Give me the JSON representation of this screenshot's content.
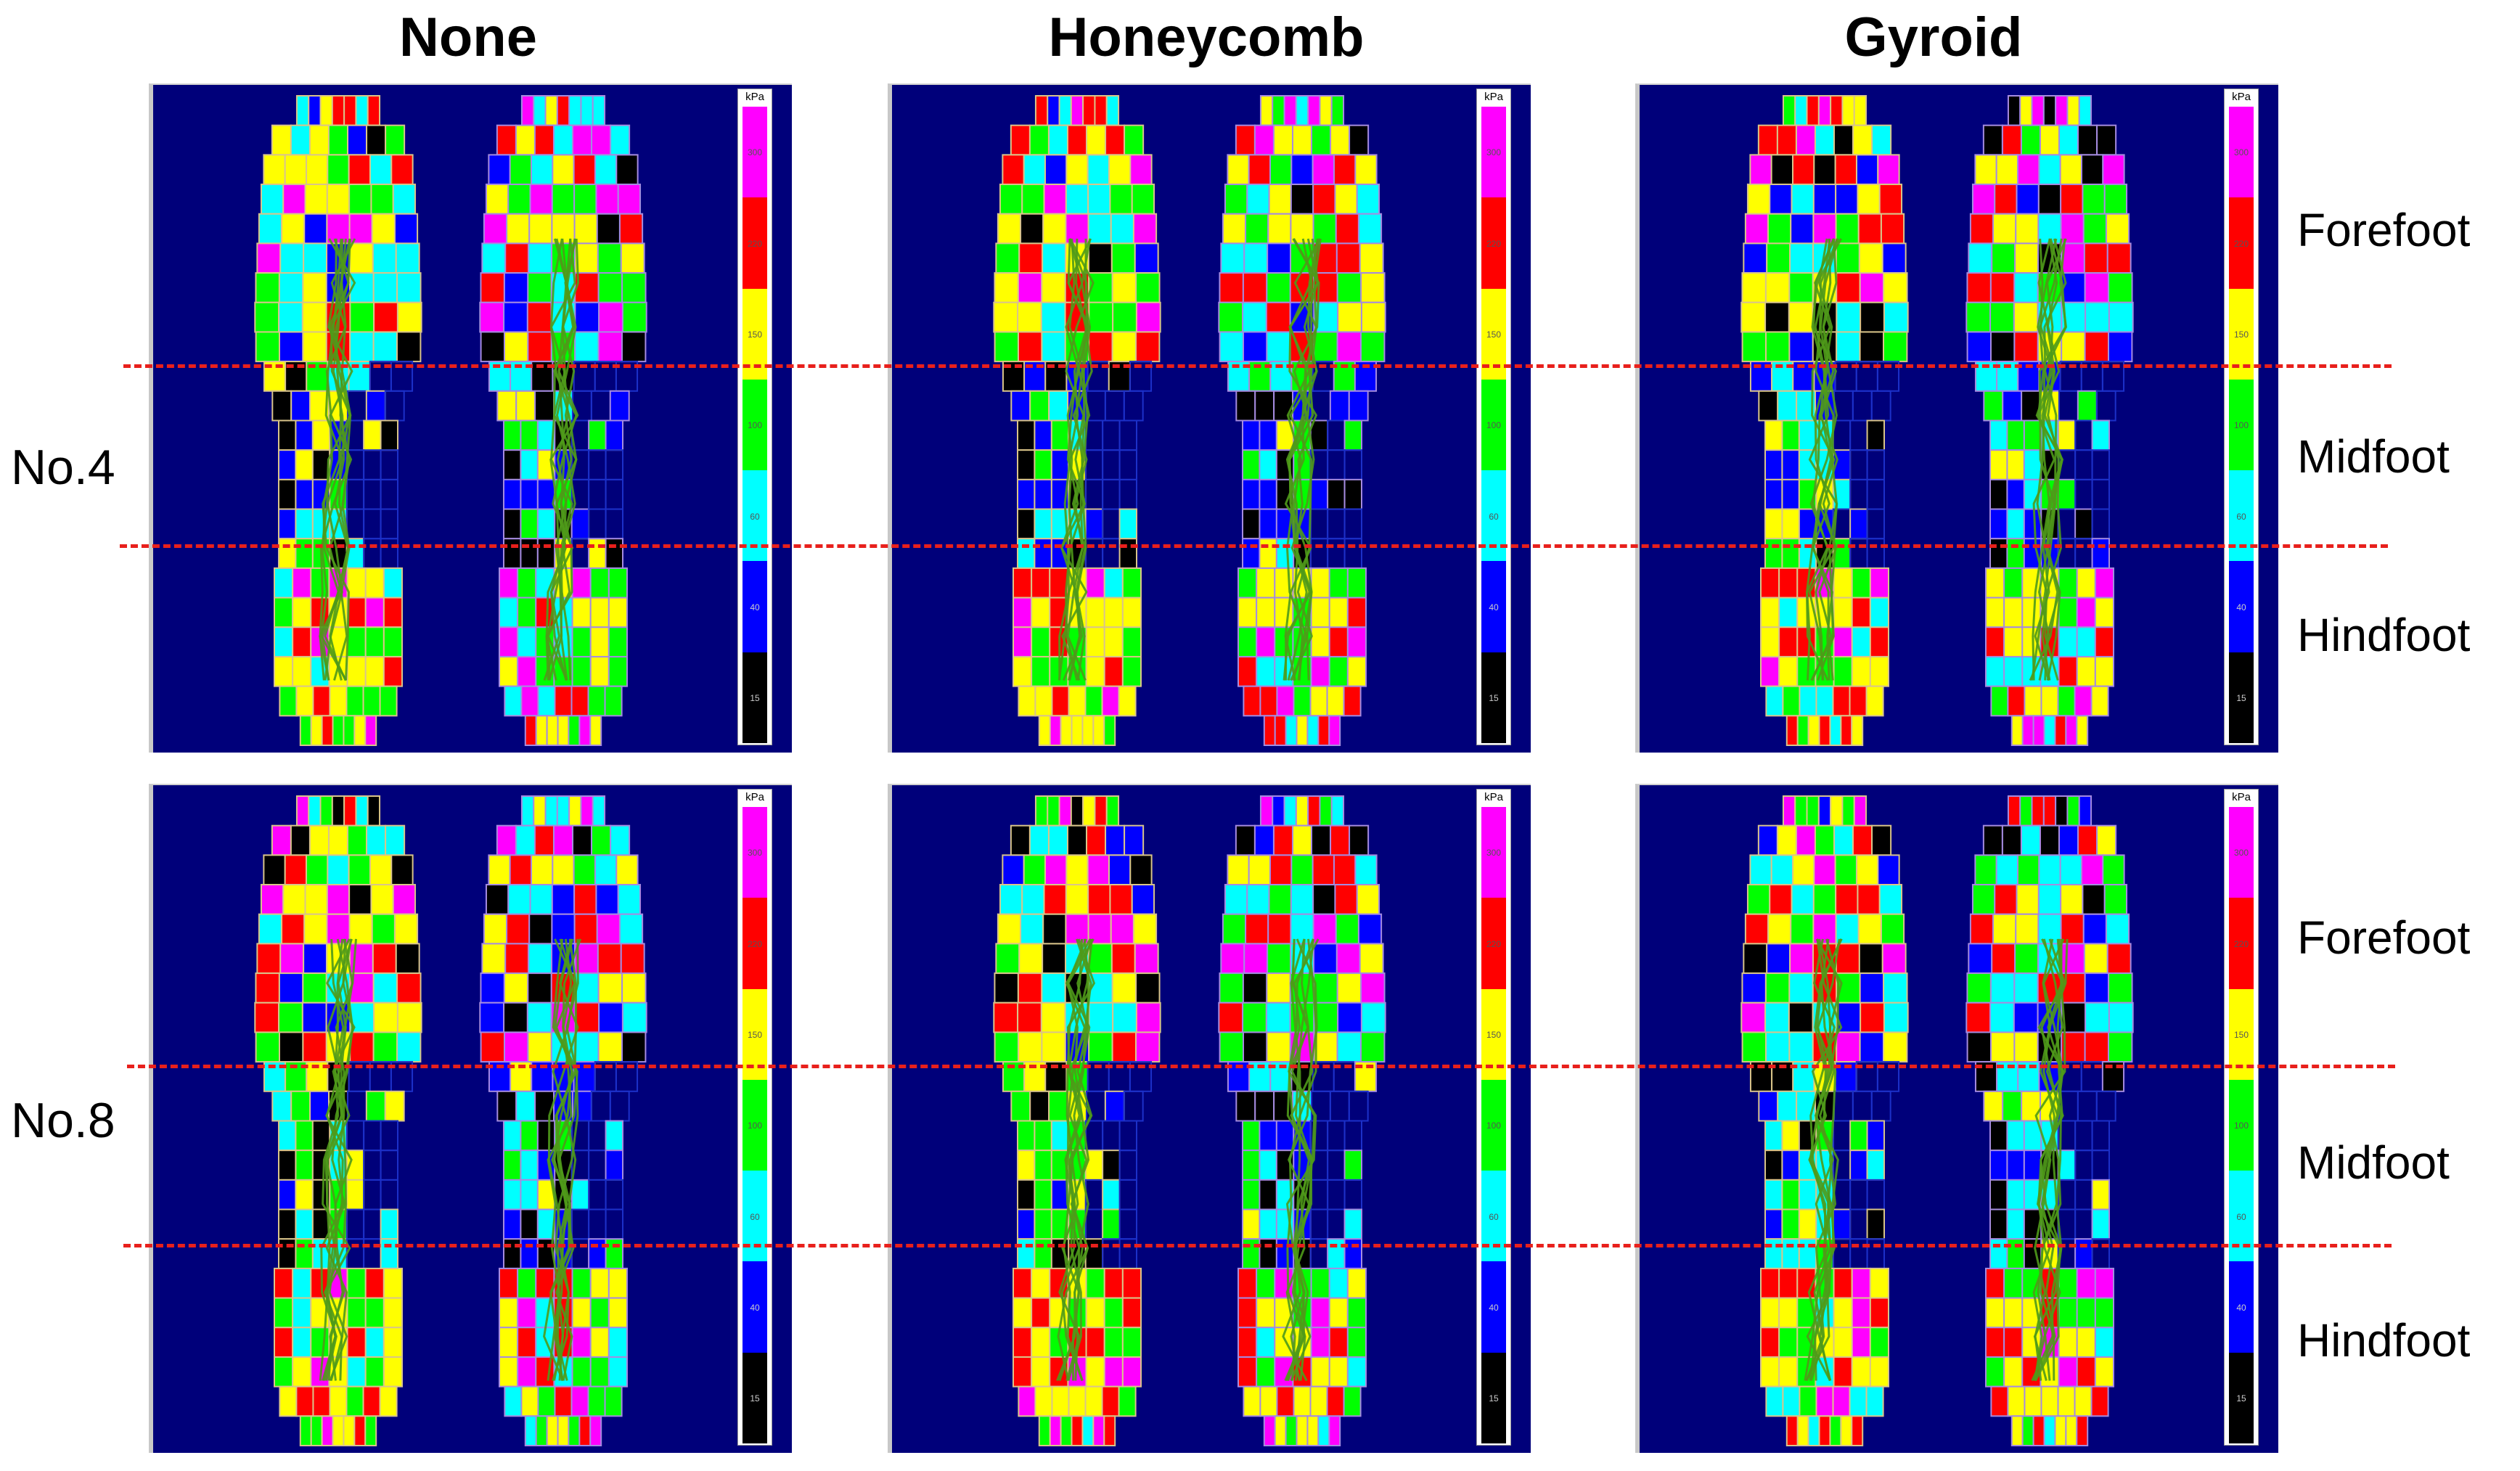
{
  "columns": [
    "None",
    "Honeycomb",
    "Gyroid"
  ],
  "rows": [
    "No.4",
    "No.8"
  ],
  "regions": [
    "Forefoot",
    "Midfoot",
    "Hindfoot"
  ],
  "scale": {
    "unit": "kPa",
    "ticks": [
      "300",
      "220",
      "150",
      "100",
      "60",
      "40",
      "15"
    ],
    "colors": [
      "#ff00ff",
      "#ff0000",
      "#ffff00",
      "#00ff00",
      "#00ffff",
      "#0000ff",
      "#000000"
    ]
  },
  "colors": {
    "background": "#00007a",
    "trajectory": "#4f9a1a",
    "divider": "#e8201c"
  }
}
